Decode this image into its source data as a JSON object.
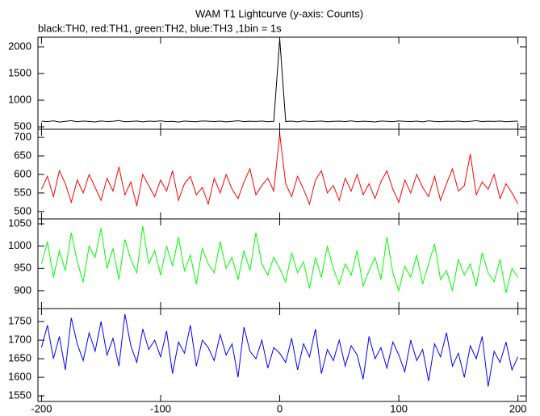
{
  "chart_data": [
    {
      "type": "line",
      "title": "WAM T1 Lightcurve (y-axis: Counts)",
      "subtitle": "black:TH0, red:TH1, green:TH2, blue:TH3 ,1bin = 1s",
      "color": "#000000",
      "x": [
        -200,
        -195,
        -190,
        -185,
        -180,
        -175,
        -170,
        -165,
        -160,
        -155,
        -150,
        -145,
        -140,
        -135,
        -130,
        -125,
        -120,
        -115,
        -110,
        -105,
        -100,
        -95,
        -90,
        -85,
        -80,
        -75,
        -70,
        -65,
        -60,
        -55,
        -50,
        -45,
        -40,
        -35,
        -30,
        -25,
        -20,
        -15,
        -10,
        -5,
        0,
        5,
        10,
        15,
        20,
        25,
        30,
        35,
        40,
        45,
        50,
        55,
        60,
        65,
        70,
        75,
        80,
        85,
        90,
        95,
        100,
        105,
        110,
        115,
        120,
        125,
        130,
        135,
        140,
        145,
        150,
        155,
        160,
        165,
        170,
        175,
        180,
        185,
        190,
        195,
        200
      ],
      "values": [
        605,
        598,
        612,
        590,
        603,
        615,
        596,
        608,
        600,
        592,
        610,
        598,
        604,
        617,
        595,
        601,
        609,
        593,
        606,
        600,
        612,
        597,
        603,
        590,
        608,
        601,
        596,
        611,
        604,
        599,
        607,
        593,
        602,
        614,
        598,
        605,
        600,
        609,
        596,
        603,
        2150,
        600,
        606,
        594,
        611,
        598,
        603,
        609,
        595,
        602,
        607,
        599,
        613,
        596,
        604,
        600,
        591,
        608,
        602,
        597,
        610,
        603,
        599,
        606,
        594,
        612,
        601,
        597,
        605,
        600,
        609,
        596,
        603,
        615,
        598,
        604,
        600,
        608,
        595,
        602,
        606
      ],
      "xlim": [
        -203,
        207
      ],
      "ylim": [
        455,
        2182
      ],
      "yticks": [
        500,
        1000,
        1500,
        2000
      ]
    },
    {
      "type": "line",
      "color": "#ff0000",
      "x": [
        -200,
        -195,
        -190,
        -185,
        -180,
        -175,
        -170,
        -165,
        -160,
        -155,
        -150,
        -145,
        -140,
        -135,
        -130,
        -125,
        -120,
        -115,
        -110,
        -105,
        -100,
        -95,
        -90,
        -85,
        -80,
        -75,
        -70,
        -65,
        -60,
        -55,
        -50,
        -45,
        -40,
        -35,
        -30,
        -25,
        -20,
        -15,
        -10,
        -5,
        0,
        5,
        10,
        15,
        20,
        25,
        30,
        35,
        40,
        45,
        50,
        55,
        60,
        65,
        70,
        75,
        80,
        85,
        90,
        95,
        100,
        105,
        110,
        115,
        120,
        125,
        130,
        135,
        140,
        145,
        150,
        155,
        160,
        165,
        170,
        175,
        180,
        185,
        190,
        195,
        200
      ],
      "values": [
        560,
        595,
        540,
        610,
        575,
        525,
        585,
        550,
        600,
        565,
        530,
        590,
        555,
        620,
        545,
        580,
        515,
        600,
        570,
        540,
        585,
        555,
        610,
        530,
        575,
        595,
        545,
        565,
        520,
        590,
        550,
        600,
        560,
        535,
        580,
        615,
        545,
        570,
        590,
        555,
        710,
        575,
        540,
        595,
        560,
        520,
        585,
        610,
        550,
        570,
        530,
        590,
        555,
        600,
        545,
        575,
        535,
        580,
        610,
        560,
        525,
        585,
        550,
        600,
        565,
        540,
        595,
        530,
        575,
        615,
        555,
        570,
        655,
        545,
        580,
        560,
        600,
        535,
        575,
        550,
        520
      ],
      "xlim": [
        -203,
        207
      ],
      "ylim": [
        480,
        722
      ],
      "yticks": [
        500,
        550,
        600,
        650,
        700
      ]
    },
    {
      "type": "line",
      "color": "#00ff00",
      "x": [
        -200,
        -195,
        -190,
        -185,
        -180,
        -175,
        -170,
        -165,
        -160,
        -155,
        -150,
        -145,
        -140,
        -135,
        -130,
        -125,
        -120,
        -115,
        -110,
        -105,
        -100,
        -95,
        -90,
        -85,
        -80,
        -75,
        -70,
        -65,
        -60,
        -55,
        -50,
        -45,
        -40,
        -35,
        -30,
        -25,
        -20,
        -15,
        -10,
        -5,
        0,
        5,
        10,
        15,
        20,
        25,
        30,
        35,
        40,
        45,
        50,
        55,
        60,
        65,
        70,
        75,
        80,
        85,
        90,
        95,
        100,
        105,
        110,
        115,
        120,
        125,
        130,
        135,
        140,
        145,
        150,
        155,
        160,
        165,
        170,
        175,
        180,
        185,
        190,
        195,
        200
      ],
      "values": [
        960,
        1010,
        930,
        990,
        945,
        1030,
        965,
        920,
        1000,
        975,
        1040,
        950,
        995,
        925,
        1015,
        970,
        940,
        1045,
        960,
        990,
        935,
        1000,
        955,
        1020,
        945,
        980,
        915,
        995,
        960,
        940,
        1010,
        950,
        975,
        925,
        990,
        945,
        1030,
        960,
        935,
        975,
        950,
        920,
        985,
        940,
        965,
        905,
        975,
        930,
        1000,
        950,
        915,
        960,
        935,
        990,
        910,
        945,
        975,
        925,
        1020,
        940,
        900,
        955,
        930,
        980,
        915,
        960,
        1005,
        925,
        945,
        900,
        970,
        935,
        960,
        910,
        985,
        940,
        920,
        970,
        895,
        950,
        930
      ],
      "xlim": [
        -203,
        207
      ],
      "ylim": [
        860,
        1061
      ],
      "yticks": [
        900,
        950,
        1000,
        1050
      ]
    },
    {
      "type": "line",
      "color": "#0000ff",
      "x": [
        -200,
        -195,
        -190,
        -185,
        -180,
        -175,
        -170,
        -165,
        -160,
        -155,
        -150,
        -145,
        -140,
        -135,
        -130,
        -125,
        -120,
        -115,
        -110,
        -105,
        -100,
        -95,
        -90,
        -85,
        -80,
        -75,
        -70,
        -65,
        -60,
        -55,
        -50,
        -45,
        -40,
        -35,
        -30,
        -25,
        -20,
        -15,
        -10,
        -5,
        0,
        5,
        10,
        15,
        20,
        25,
        30,
        35,
        40,
        45,
        50,
        55,
        60,
        65,
        70,
        75,
        80,
        85,
        90,
        95,
        100,
        105,
        110,
        115,
        120,
        125,
        130,
        135,
        140,
        145,
        150,
        155,
        160,
        165,
        170,
        175,
        180,
        185,
        190,
        195,
        200
      ],
      "values": [
        1680,
        1740,
        1650,
        1710,
        1620,
        1760,
        1690,
        1645,
        1720,
        1670,
        1750,
        1660,
        1705,
        1630,
        1770,
        1685,
        1640,
        1730,
        1675,
        1700,
        1655,
        1725,
        1610,
        1695,
        1665,
        1740,
        1630,
        1700,
        1680,
        1645,
        1715,
        1660,
        1690,
        1600,
        1735,
        1670,
        1650,
        1700,
        1625,
        1680,
        1665,
        1640,
        1705,
        1620,
        1690,
        1655,
        1730,
        1610,
        1675,
        1645,
        1700,
        1630,
        1685,
        1660,
        1595,
        1710,
        1650,
        1680,
        1625,
        1695,
        1660,
        1615,
        1700,
        1645,
        1675,
        1590,
        1690,
        1655,
        1720,
        1630,
        1665,
        1600,
        1685,
        1650,
        1710,
        1575,
        1670,
        1640,
        1695,
        1620,
        1655
      ],
      "xlim": [
        -203,
        207
      ],
      "ylim": [
        1535,
        1785
      ],
      "yticks": [
        1550,
        1600,
        1650,
        1700,
        1750
      ],
      "xticks": [
        -200,
        -100,
        0,
        100,
        200
      ]
    }
  ]
}
